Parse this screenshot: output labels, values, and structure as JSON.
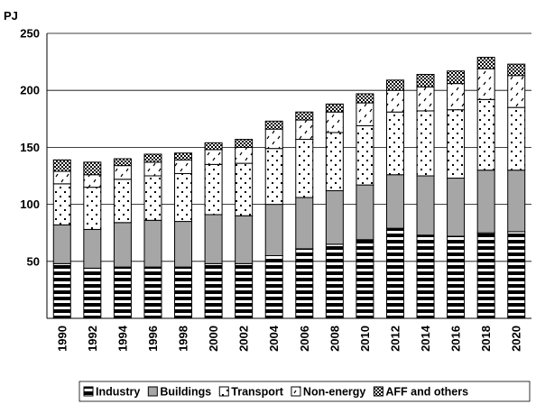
{
  "chart_data": {
    "type": "bar",
    "stacked": true,
    "unit_label": "PJ",
    "ylim": [
      0,
      250
    ],
    "yticks": [
      50,
      100,
      150,
      200,
      250
    ],
    "grid": "horizontal",
    "legend_position": "bottom",
    "categories": [
      "1990",
      "1992",
      "1994",
      "1996",
      "1998",
      "2000",
      "2002",
      "2004",
      "2006",
      "2008",
      "2010",
      "2012",
      "2014",
      "2016",
      "2018",
      "2020"
    ],
    "series": [
      {
        "name": "Industry",
        "pattern": "hstripes",
        "values": [
          48,
          44,
          45,
          45,
          45,
          48,
          48,
          55,
          61,
          65,
          69,
          79,
          73,
          72,
          75,
          76
        ]
      },
      {
        "name": "Buildings",
        "pattern": "gray",
        "values": [
          34,
          34,
          39,
          41,
          40,
          43,
          42,
          45,
          45,
          47,
          48,
          47,
          52,
          51,
          55,
          54
        ]
      },
      {
        "name": "Transport",
        "pattern": "dots",
        "values": [
          36,
          37,
          38,
          39,
          42,
          44,
          46,
          49,
          51,
          51,
          52,
          55,
          57,
          60,
          62,
          55
        ]
      },
      {
        "name": "Non-energy",
        "pattern": "dashes",
        "values": [
          11,
          11,
          12,
          12,
          12,
          13,
          14,
          17,
          17,
          18,
          20,
          19,
          21,
          23,
          27,
          28
        ]
      },
      {
        "name": "AFF and others",
        "pattern": "checker",
        "values": [
          10,
          11,
          6,
          7,
          6,
          6,
          7,
          7,
          7,
          7,
          8,
          9,
          11,
          11,
          10,
          10
        ]
      }
    ]
  }
}
